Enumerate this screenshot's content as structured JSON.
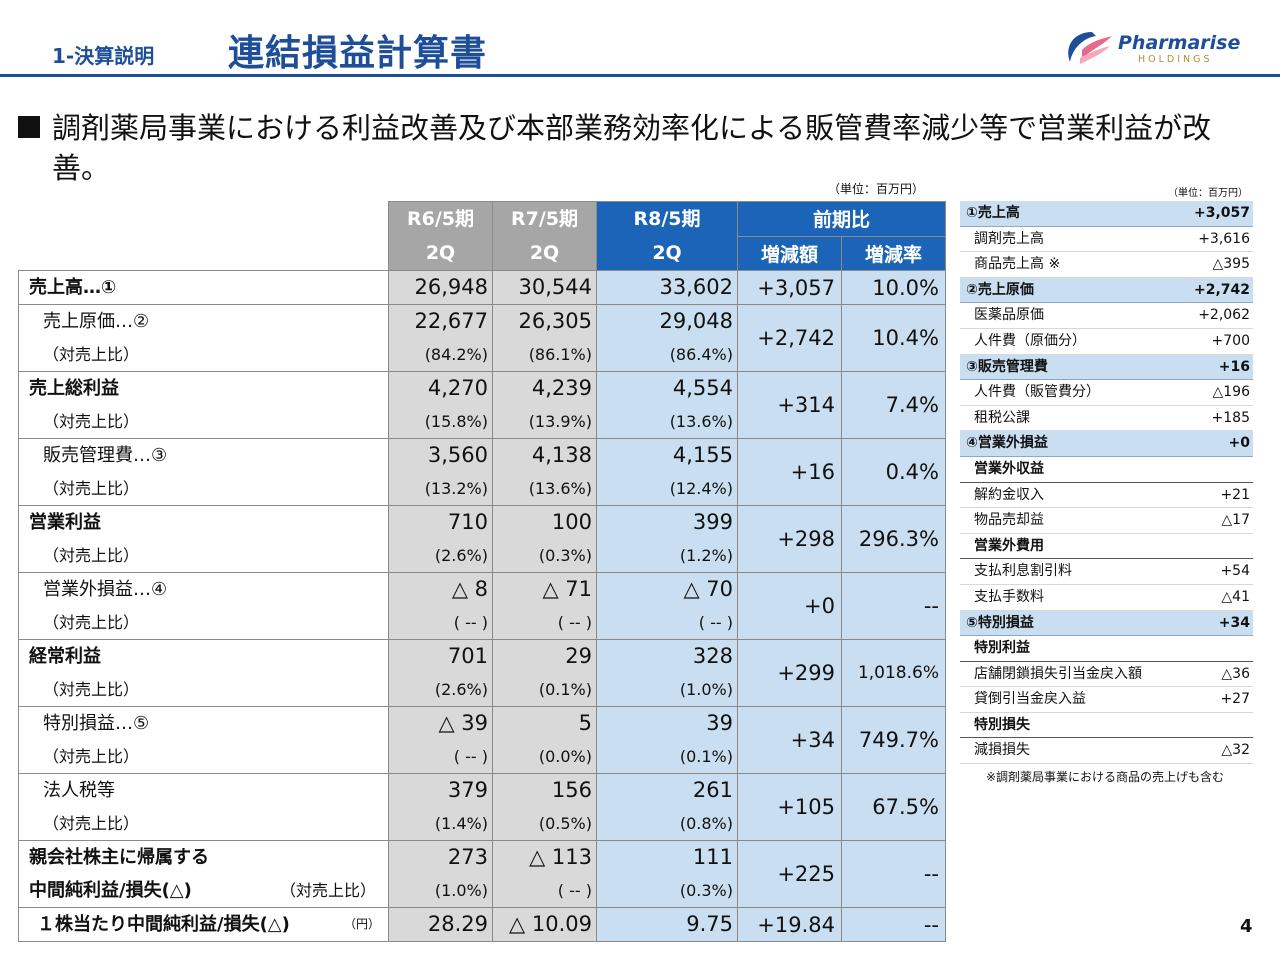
{
  "header": {
    "section": "1-決算説明",
    "title": "連結損益計算書",
    "logo_main": "Pharmarise",
    "logo_sub": "HOLDINGS"
  },
  "lead": "調剤薬局事業における利益改善及び本部業務効率化による販管費率減少等で営業利益が改善。",
  "unit_main": "（単位：百万円）",
  "unit_side": "（単位：百万円）",
  "main_table": {
    "cols": {
      "c1": "R6/5期",
      "c1b": "2Q",
      "c2": "R7/5期",
      "c2b": "2Q",
      "c3": "R8/5期",
      "c3b": "2Q",
      "yoy": "前期比",
      "diff": "増減額",
      "rate": "増減率"
    },
    "rows": [
      {
        "label": "売上高…①",
        "v1": "26,948",
        "v2": "30,544",
        "v3": "33,602",
        "diff": "+3,057",
        "rate": "10.0%"
      },
      {
        "label": "売上原価…②",
        "ratio_label": "（対売上比）",
        "v1": "22,677",
        "v2": "26,305",
        "v3": "29,048",
        "r1": "(84.2%)",
        "r2": "(86.1%)",
        "r3": "(86.4%)",
        "diff": "+2,742",
        "rate": "10.4%"
      },
      {
        "label": "売上総利益",
        "ratio_label": "（対売上比）",
        "v1": "4,270",
        "v2": "4,239",
        "v3": "4,554",
        "r1": "(15.8%)",
        "r2": "(13.9%)",
        "r3": "(13.6%)",
        "diff": "+314",
        "rate": "7.4%"
      },
      {
        "label": "販売管理費…③",
        "ratio_label": "（対売上比）",
        "v1": "3,560",
        "v2": "4,138",
        "v3": "4,155",
        "r1": "(13.2%)",
        "r2": "(13.6%)",
        "r3": "(12.4%)",
        "diff": "+16",
        "rate": "0.4%"
      },
      {
        "label": "営業利益",
        "ratio_label": "（対売上比）",
        "v1": "710",
        "v2": "100",
        "v3": "399",
        "r1": "(2.6%)",
        "r2": "(0.3%)",
        "r3": "(1.2%)",
        "diff": "+298",
        "rate": "296.3%"
      },
      {
        "label": "営業外損益…④",
        "ratio_label": "（対売上比）",
        "v1": "△ 8",
        "v2": "△ 71",
        "v3": "△ 70",
        "r1": "( -- )",
        "r2": "( -- )",
        "r3": "( -- )",
        "diff": "+0",
        "rate": "--"
      },
      {
        "label": "経常利益",
        "ratio_label": "（対売上比）",
        "v1": "701",
        "v2": "29",
        "v3": "328",
        "r1": "(2.6%)",
        "r2": "(0.1%)",
        "r3": "(1.0%)",
        "diff": "+299",
        "rate": "1,018.6%"
      },
      {
        "label": "特別損益…⑤",
        "ratio_label": "（対売上比）",
        "v1": "△ 39",
        "v2": "5",
        "v3": "39",
        "r1": "( -- )",
        "r2": "(0.0%)",
        "r3": "(0.1%)",
        "diff": "+34",
        "rate": "749.7%"
      },
      {
        "label": "法人税等",
        "ratio_label": "（対売上比）",
        "v1": "379",
        "v2": "156",
        "v3": "261",
        "r1": "(1.4%)",
        "r2": "(0.5%)",
        "r3": "(0.8%)",
        "diff": "+105",
        "rate": "67.5%"
      },
      {
        "label": "親会社株主に帰属する",
        "label2": "中間純利益/損失(△)",
        "ratio_label": "（対売上比）",
        "v1": "273",
        "v2": "△ 113",
        "v3": "111",
        "r1": "(1.0%)",
        "r2": "( -- )",
        "r3": "(0.3%)",
        "diff": "+225",
        "rate": "--"
      },
      {
        "label": "１株当たり中間純利益/損失(△)",
        "unit": "（円）",
        "v1": "28.29",
        "v2": "△ 10.09",
        "v3": "9.75",
        "diff": "+19.84",
        "rate": "--"
      }
    ]
  },
  "side_table": [
    {
      "label": "①売上高",
      "value": "+3,057",
      "type": "head"
    },
    {
      "label": "調剤売上高",
      "value": "+3,616",
      "type": "item"
    },
    {
      "label": "商品売上高 ※",
      "value": "△395",
      "type": "item"
    },
    {
      "label": "②売上原価",
      "value": "+2,742",
      "type": "head"
    },
    {
      "label": "医薬品原価",
      "value": "+2,062",
      "type": "item"
    },
    {
      "label": "人件費（原価分）",
      "value": "+700",
      "type": "item"
    },
    {
      "label": "③販売管理費",
      "value": "+16",
      "type": "head"
    },
    {
      "label": "人件費（販管費分）",
      "value": "△196",
      "type": "item"
    },
    {
      "label": "租税公課",
      "value": "+185",
      "type": "item"
    },
    {
      "label": "④営業外損益",
      "value": "+0",
      "type": "head"
    },
    {
      "label": "営業外収益",
      "value": "",
      "type": "cat"
    },
    {
      "label": "解約金収入",
      "value": "+21",
      "type": "item"
    },
    {
      "label": "物品売却益",
      "value": "△17",
      "type": "item"
    },
    {
      "label": "営業外費用",
      "value": "",
      "type": "cat"
    },
    {
      "label": "支払利息割引料",
      "value": "+54",
      "type": "item"
    },
    {
      "label": "支払手数料",
      "value": "△41",
      "type": "item"
    },
    {
      "label": "⑤特別損益",
      "value": "+34",
      "type": "head"
    },
    {
      "label": "特別利益",
      "value": "",
      "type": "cat"
    },
    {
      "label": "店舗閉鎖損失引当金戻入額",
      "value": "△36",
      "type": "item"
    },
    {
      "label": "貸倒引当金戻入益",
      "value": "+27",
      "type": "item"
    },
    {
      "label": "特別損失",
      "value": "",
      "type": "cat"
    },
    {
      "label": "減損損失",
      "value": "△32",
      "type": "item"
    }
  ],
  "side_note": "※調剤薬局事業における商品の売上げも含む",
  "page_number": "4"
}
